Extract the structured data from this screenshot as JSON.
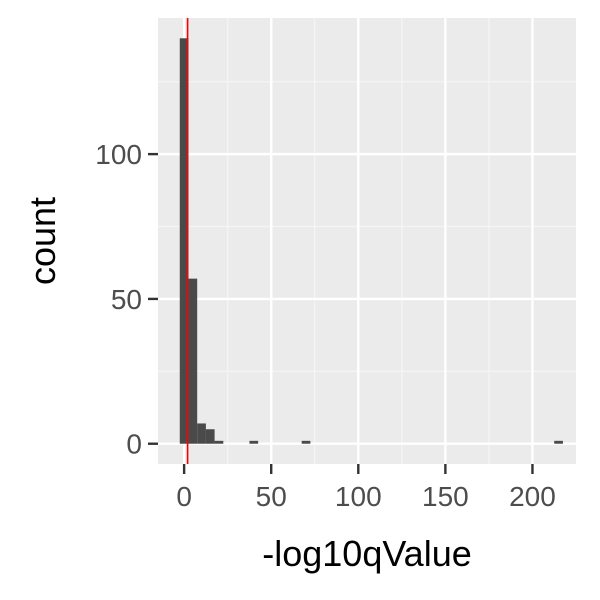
{
  "chart_data": {
    "type": "bar",
    "subtype": "histogram",
    "title": "",
    "xlabel": "-log10qValue",
    "ylabel": "count",
    "xlim": [
      -15,
      225
    ],
    "ylim": [
      -7,
      147
    ],
    "x_ticks": [
      0,
      50,
      100,
      150,
      200
    ],
    "y_ticks": [
      0,
      50,
      100
    ],
    "grid": true,
    "legend": "none",
    "bin_width": 5,
    "bins": [
      {
        "x0": -2.5,
        "x1": 2.5,
        "count": 140
      },
      {
        "x0": 2.5,
        "x1": 7.5,
        "count": 57
      },
      {
        "x0": 7.5,
        "x1": 12.5,
        "count": 7
      },
      {
        "x0": 12.5,
        "x1": 17.5,
        "count": 5
      },
      {
        "x0": 17.5,
        "x1": 22.5,
        "count": 1
      },
      {
        "x0": 37.5,
        "x1": 42.5,
        "count": 1
      },
      {
        "x0": 67.5,
        "x1": 72.5,
        "count": 1
      },
      {
        "x0": 212.5,
        "x1": 217.5,
        "count": 1
      }
    ],
    "vline": {
      "x": 2
    }
  },
  "colors": {
    "panel": "#ebebeb",
    "gridMajor": "#ffffff",
    "gridMinor": "#f5f5f5",
    "bar": "#4a4a4a",
    "vline": "#ff0000",
    "tick": "#333333"
  }
}
